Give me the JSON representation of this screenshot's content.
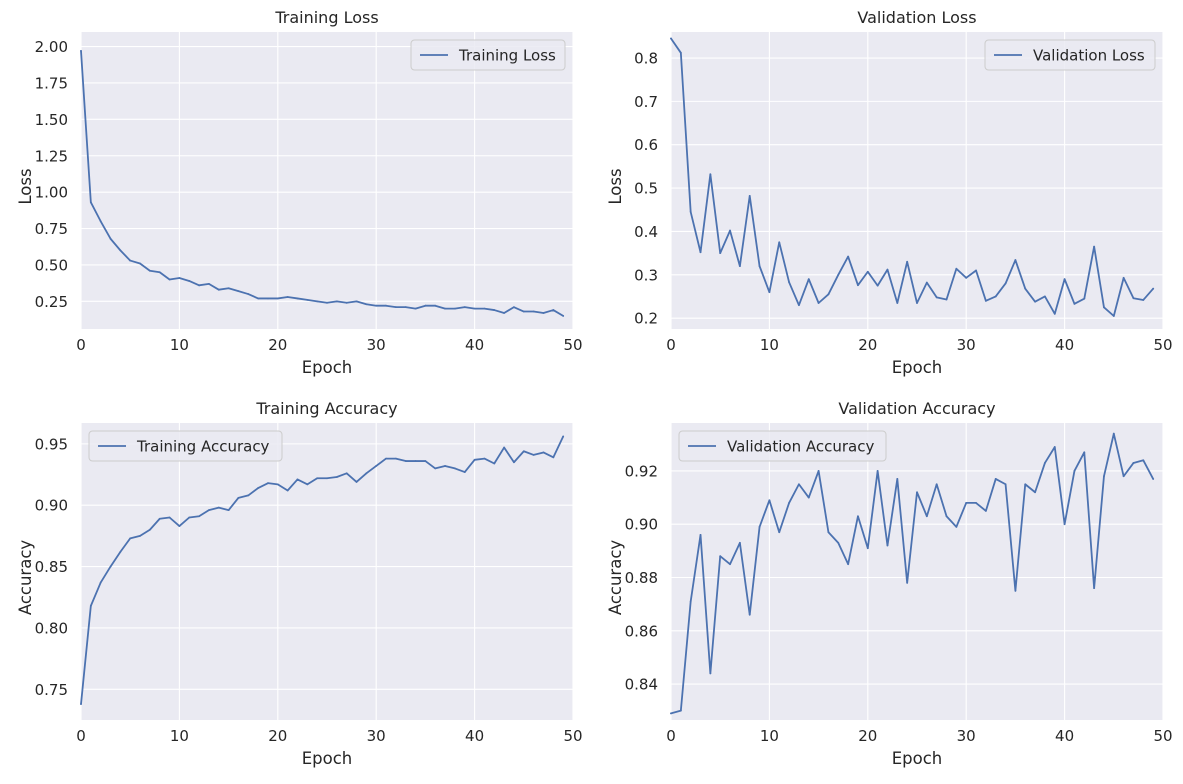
{
  "figure": {
    "width": 1183,
    "height": 784
  },
  "colors": {
    "background": "#eaeaf2",
    "grid": "#ffffff",
    "line": "#4c72b0",
    "text": "#262626"
  },
  "chart_data": [
    {
      "type": "line",
      "title": "Training Loss",
      "xlabel": "Epoch",
      "ylabel": "Loss",
      "xlim": [
        0,
        50
      ],
      "ylim": [
        0.06,
        2.1
      ],
      "xticks": [
        0,
        10,
        20,
        30,
        40,
        50
      ],
      "xtick_labels": [
        "0",
        "10",
        "20",
        "30",
        "40",
        "50"
      ],
      "yticks": [
        0.25,
        0.5,
        0.75,
        1.0,
        1.25,
        1.5,
        1.75,
        2.0
      ],
      "ytick_labels": [
        "0.25",
        "0.50",
        "0.75",
        "1.00",
        "1.25",
        "1.50",
        "1.75",
        "2.00"
      ],
      "grid": true,
      "legend_position": "upper right",
      "series": [
        {
          "name": "Training Loss",
          "x": [
            0,
            1,
            2,
            3,
            4,
            5,
            6,
            7,
            8,
            9,
            10,
            11,
            12,
            13,
            14,
            15,
            16,
            17,
            18,
            19,
            20,
            21,
            22,
            23,
            24,
            25,
            26,
            27,
            28,
            29,
            30,
            31,
            32,
            33,
            34,
            35,
            36,
            37,
            38,
            39,
            40,
            41,
            42,
            43,
            44,
            45,
            46,
            47,
            48,
            49
          ],
          "y": [
            1.97,
            0.93,
            0.8,
            0.68,
            0.6,
            0.53,
            0.51,
            0.46,
            0.45,
            0.4,
            0.41,
            0.39,
            0.36,
            0.37,
            0.33,
            0.34,
            0.32,
            0.3,
            0.27,
            0.27,
            0.27,
            0.28,
            0.27,
            0.26,
            0.25,
            0.24,
            0.25,
            0.24,
            0.25,
            0.23,
            0.22,
            0.22,
            0.21,
            0.21,
            0.2,
            0.22,
            0.22,
            0.2,
            0.2,
            0.21,
            0.2,
            0.2,
            0.19,
            0.17,
            0.21,
            0.18,
            0.18,
            0.17,
            0.19,
            0.15
          ]
        }
      ]
    },
    {
      "type": "line",
      "title": "Validation Loss",
      "xlabel": "Epoch",
      "ylabel": "Loss",
      "xlim": [
        0,
        50
      ],
      "ylim": [
        0.175,
        0.86
      ],
      "xticks": [
        0,
        10,
        20,
        30,
        40,
        50
      ],
      "xtick_labels": [
        "0",
        "10",
        "20",
        "30",
        "40",
        "50"
      ],
      "yticks": [
        0.2,
        0.3,
        0.4,
        0.5,
        0.6,
        0.7,
        0.8
      ],
      "ytick_labels": [
        "0.2",
        "0.3",
        "0.4",
        "0.5",
        "0.6",
        "0.7",
        "0.8"
      ],
      "grid": true,
      "legend_position": "upper right",
      "series": [
        {
          "name": "Validation Loss",
          "x": [
            0,
            1,
            2,
            3,
            4,
            5,
            6,
            7,
            8,
            9,
            10,
            11,
            12,
            13,
            14,
            15,
            16,
            17,
            18,
            19,
            20,
            21,
            22,
            23,
            24,
            25,
            26,
            27,
            28,
            29,
            30,
            31,
            32,
            33,
            34,
            35,
            36,
            37,
            38,
            39,
            40,
            41,
            42,
            43,
            44,
            45,
            46,
            47,
            48,
            49
          ],
          "y": [
            0.845,
            0.812,
            0.445,
            0.352,
            0.532,
            0.35,
            0.402,
            0.32,
            0.482,
            0.32,
            0.26,
            0.375,
            0.283,
            0.23,
            0.29,
            0.235,
            0.255,
            0.3,
            0.342,
            0.276,
            0.307,
            0.275,
            0.312,
            0.235,
            0.33,
            0.235,
            0.282,
            0.248,
            0.243,
            0.314,
            0.293,
            0.31,
            0.24,
            0.25,
            0.28,
            0.334,
            0.268,
            0.238,
            0.25,
            0.21,
            0.29,
            0.233,
            0.245,
            0.365,
            0.225,
            0.205,
            0.293,
            0.246,
            0.242,
            0.268
          ]
        }
      ]
    },
    {
      "type": "line",
      "title": "Training Accuracy",
      "xlabel": "Epoch",
      "ylabel": "Accuracy",
      "xlim": [
        0,
        50
      ],
      "ylim": [
        0.725,
        0.967
      ],
      "xticks": [
        0,
        10,
        20,
        30,
        40,
        50
      ],
      "xtick_labels": [
        "0",
        "10",
        "20",
        "30",
        "40",
        "50"
      ],
      "yticks": [
        0.75,
        0.8,
        0.85,
        0.9,
        0.95
      ],
      "ytick_labels": [
        "0.75",
        "0.80",
        "0.85",
        "0.90",
        "0.95"
      ],
      "grid": true,
      "legend_position": "upper left",
      "series": [
        {
          "name": "Training Accuracy",
          "x": [
            0,
            1,
            2,
            3,
            4,
            5,
            6,
            7,
            8,
            9,
            10,
            11,
            12,
            13,
            14,
            15,
            16,
            17,
            18,
            19,
            20,
            21,
            22,
            23,
            24,
            25,
            26,
            27,
            28,
            29,
            30,
            31,
            32,
            33,
            34,
            35,
            36,
            37,
            38,
            39,
            40,
            41,
            42,
            43,
            44,
            45,
            46,
            47,
            48,
            49
          ],
          "y": [
            0.738,
            0.818,
            0.837,
            0.85,
            0.862,
            0.873,
            0.875,
            0.88,
            0.889,
            0.89,
            0.883,
            0.89,
            0.891,
            0.896,
            0.898,
            0.896,
            0.906,
            0.908,
            0.914,
            0.918,
            0.917,
            0.912,
            0.921,
            0.917,
            0.922,
            0.922,
            0.923,
            0.926,
            0.919,
            0.926,
            0.932,
            0.938,
            0.938,
            0.936,
            0.936,
            0.936,
            0.93,
            0.932,
            0.93,
            0.927,
            0.937,
            0.938,
            0.934,
            0.947,
            0.935,
            0.944,
            0.941,
            0.943,
            0.939,
            0.956
          ]
        }
      ]
    },
    {
      "type": "line",
      "title": "Validation Accuracy",
      "xlabel": "Epoch",
      "ylabel": "Accuracy",
      "xlim": [
        0,
        50
      ],
      "ylim": [
        0.8265,
        0.938
      ],
      "xticks": [
        0,
        10,
        20,
        30,
        40,
        50
      ],
      "xtick_labels": [
        "0",
        "10",
        "20",
        "30",
        "40",
        "50"
      ],
      "yticks": [
        0.84,
        0.86,
        0.88,
        0.9,
        0.92
      ],
      "ytick_labels": [
        "0.84",
        "0.86",
        "0.88",
        "0.90",
        "0.92"
      ],
      "grid": true,
      "legend_position": "upper left",
      "series": [
        {
          "name": "Validation Accuracy",
          "x": [
            0,
            1,
            2,
            3,
            4,
            5,
            6,
            7,
            8,
            9,
            10,
            11,
            12,
            13,
            14,
            15,
            16,
            17,
            18,
            19,
            20,
            21,
            22,
            23,
            24,
            25,
            26,
            27,
            28,
            29,
            30,
            31,
            32,
            33,
            34,
            35,
            36,
            37,
            38,
            39,
            40,
            41,
            42,
            43,
            44,
            45,
            46,
            47,
            48,
            49
          ],
          "y": [
            0.829,
            0.83,
            0.871,
            0.896,
            0.844,
            0.888,
            0.885,
            0.893,
            0.866,
            0.899,
            0.909,
            0.897,
            0.908,
            0.915,
            0.91,
            0.92,
            0.897,
            0.893,
            0.885,
            0.903,
            0.891,
            0.92,
            0.892,
            0.917,
            0.878,
            0.912,
            0.903,
            0.915,
            0.903,
            0.899,
            0.908,
            0.908,
            0.905,
            0.917,
            0.915,
            0.875,
            0.915,
            0.912,
            0.923,
            0.929,
            0.9,
            0.92,
            0.927,
            0.876,
            0.918,
            0.934,
            0.918,
            0.923,
            0.924,
            0.917
          ]
        }
      ]
    }
  ]
}
